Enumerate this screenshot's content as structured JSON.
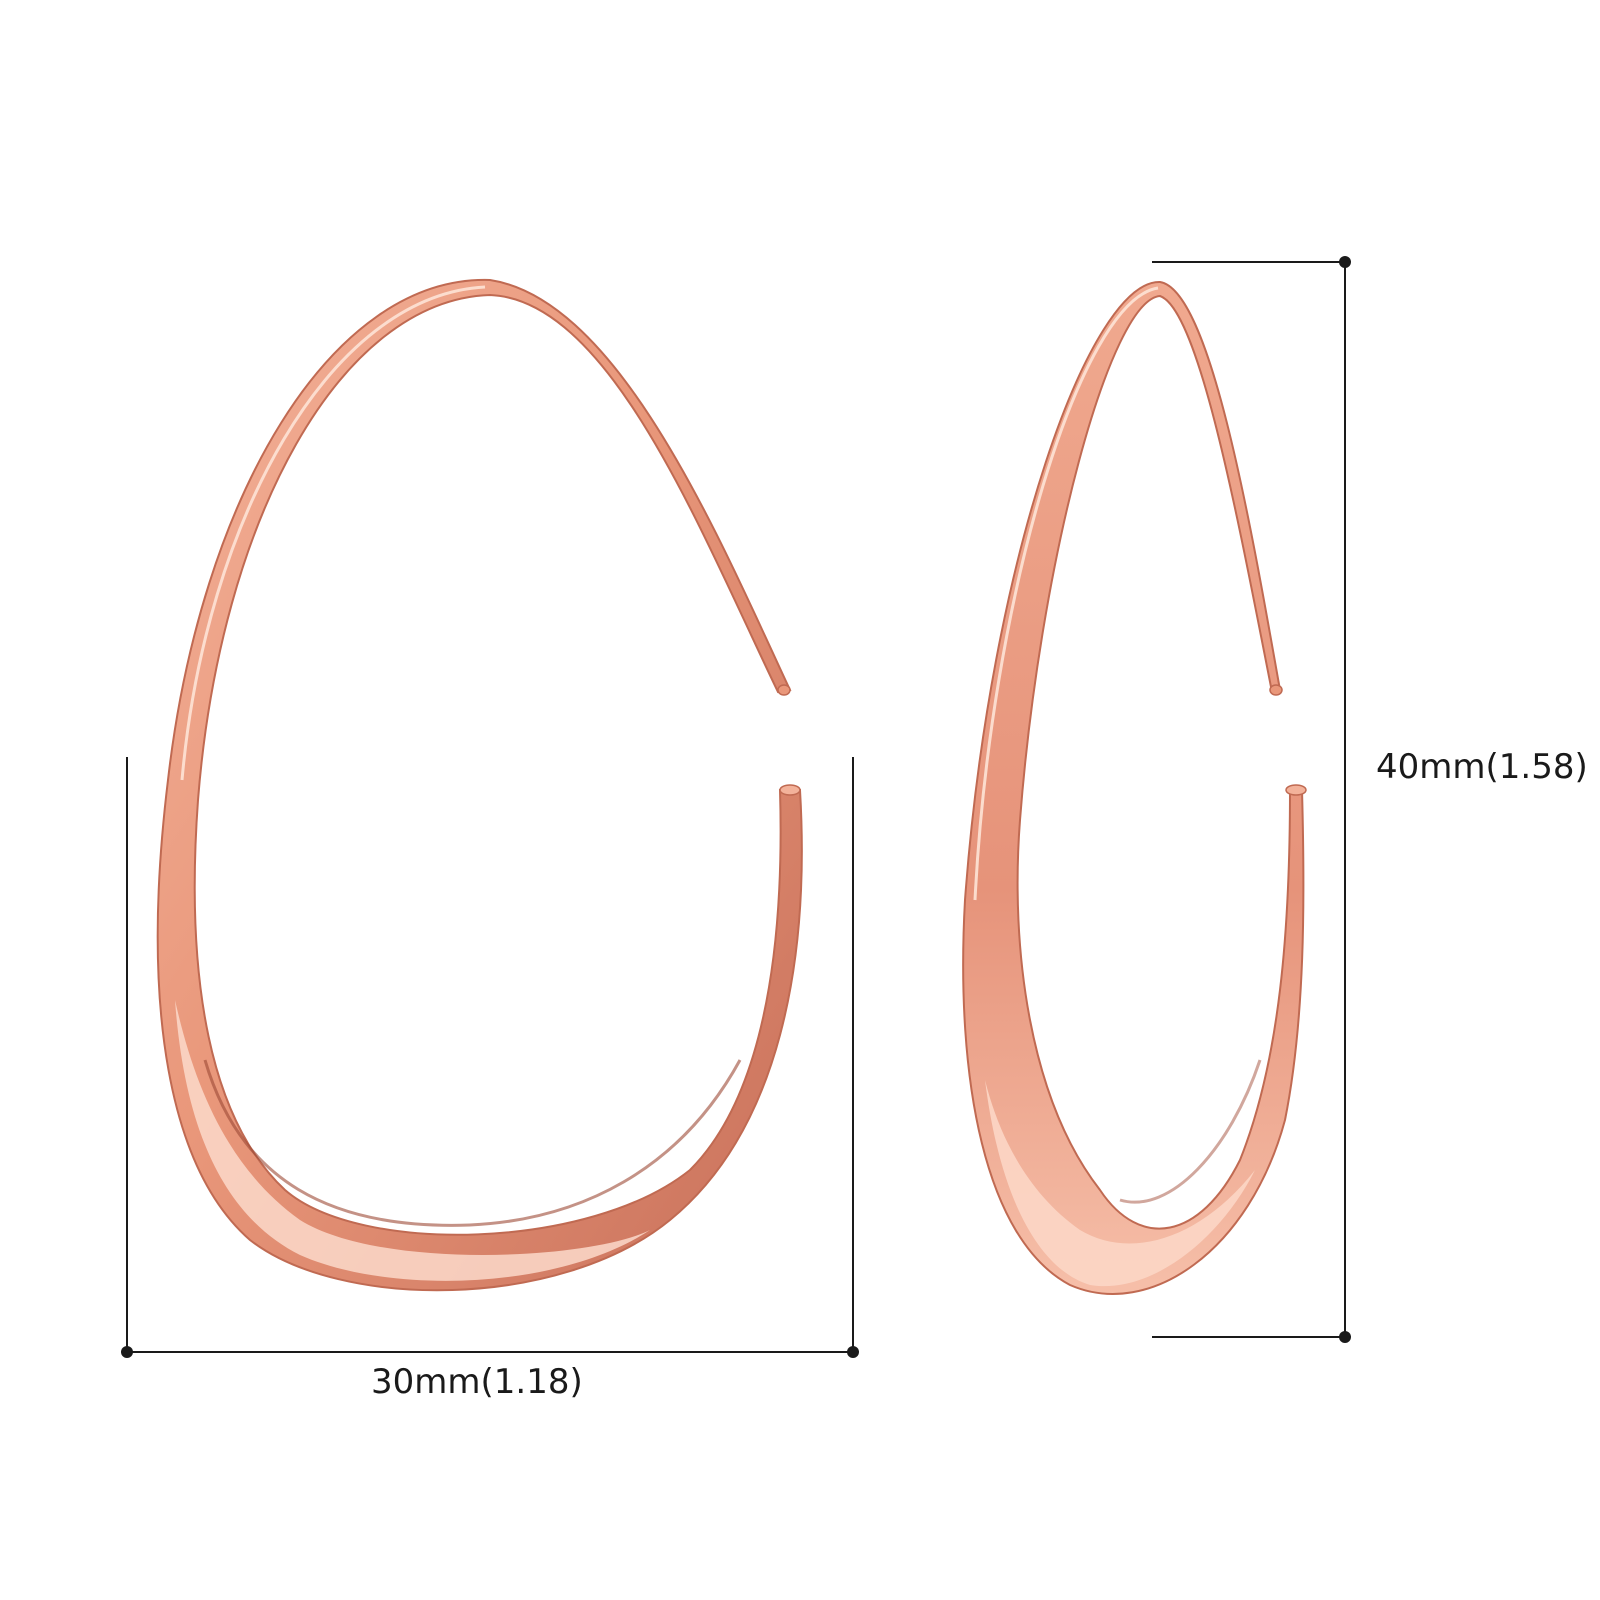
{
  "product": {
    "metal_color": "#e9977a",
    "highlight_color": "#fde3d6",
    "shadow_color": "#b8604a"
  },
  "dimensions": {
    "width_label": "30mm(1.18)",
    "height_label": "40mm(1.58)",
    "line_color": "#1a1a1a"
  }
}
